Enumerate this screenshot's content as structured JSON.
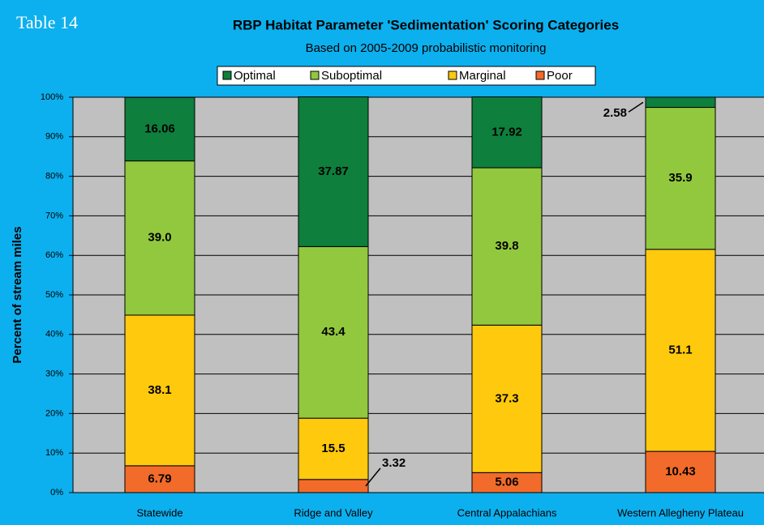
{
  "table_label": "Table 14",
  "chart_data": {
    "type": "stacked_bar",
    "title": "RBP Habitat Parameter 'Sedimentation' Scoring Categories",
    "subtitle": "Based on 2005-2009 probabilistic monitoring",
    "y_label": "Percent of stream miles",
    "categories": [
      "Statewide",
      "Ridge and Valley",
      "Central Appalachians",
      "Western Allegheny Plateau"
    ],
    "series": [
      {
        "name": "Optimal",
        "color": "#0e7f3c",
        "values": [
          16.06,
          37.87,
          17.92,
          2.58
        ],
        "value_labels": [
          "16.06",
          "37.87",
          "17.92",
          "2.58"
        ]
      },
      {
        "name": "Suboptimal",
        "color": "#92c83e",
        "values": [
          39.0,
          43.4,
          39.8,
          35.9
        ],
        "value_labels": [
          "39.0",
          "43.4",
          "39.8",
          "35.9"
        ]
      },
      {
        "name": "Marginal",
        "color": "#ffc90e",
        "values": [
          38.1,
          15.5,
          37.3,
          51.1
        ],
        "value_labels": [
          "38.1",
          "15.5",
          "37.3",
          "51.1"
        ]
      },
      {
        "name": "Poor",
        "color": "#f26b2a",
        "values": [
          6.79,
          3.32,
          5.06,
          10.43
        ],
        "value_labels": [
          "6.79",
          "3.32",
          "5.06",
          "10.43"
        ]
      }
    ],
    "ylim": [
      0,
      100
    ],
    "yticks": [
      {
        "value": 0,
        "label": "0%"
      },
      {
        "value": 10,
        "label": "10%"
      },
      {
        "value": 20,
        "label": "20%"
      },
      {
        "value": 30,
        "label": "30%"
      },
      {
        "value": 40,
        "label": "40%"
      },
      {
        "value": 50,
        "label": "50%"
      },
      {
        "value": 60,
        "label": "60%"
      },
      {
        "value": 70,
        "label": "70%"
      },
      {
        "value": 80,
        "label": "80%"
      },
      {
        "value": 90,
        "label": "90%"
      },
      {
        "value": 100,
        "label": "100%"
      }
    ],
    "grid": true,
    "legend": "top",
    "background": "#0cb0ee",
    "plot_background": "#c0c0c0"
  }
}
